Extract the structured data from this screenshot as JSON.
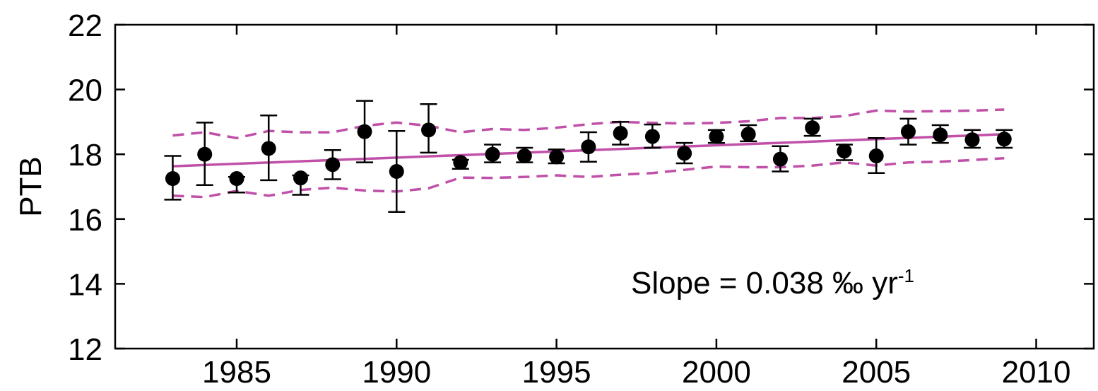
{
  "chart_data": {
    "type": "scatter",
    "title": "",
    "xlabel": "",
    "ylabel": "PTB",
    "xlim": [
      1981.2,
      2011.8
    ],
    "ylim": [
      12,
      22
    ],
    "xticks": [
      "1985",
      "1990",
      "1995",
      "2000",
      "2005",
      "2010"
    ],
    "yticks": [
      "12",
      "14",
      "16",
      "18",
      "20",
      "22"
    ],
    "grid": false,
    "annotation": {
      "text": "Slope = 0.038 ‰ yr",
      "superscript": "-1"
    },
    "series": [
      {
        "style": "points-with-error-bars",
        "color": "#000000",
        "x": [
          1983,
          1984,
          1985,
          1986,
          1987,
          1988,
          1989,
          1990,
          1991,
          1992,
          1993,
          1994,
          1995,
          1996,
          1997,
          1998,
          1999,
          2000,
          2001,
          2002,
          2003,
          2004,
          2005,
          2006,
          2007,
          2008,
          2009
        ],
        "y": [
          17.25,
          18.0,
          17.25,
          18.18,
          17.27,
          17.68,
          18.7,
          17.47,
          18.75,
          17.75,
          18.0,
          17.95,
          17.92,
          18.23,
          18.65,
          18.55,
          18.03,
          18.55,
          18.62,
          17.85,
          18.82,
          18.1,
          17.95,
          18.7,
          18.6,
          18.45,
          18.47
        ],
        "error_low": [
          16.6,
          17.05,
          16.82,
          17.2,
          16.75,
          17.23,
          17.75,
          16.22,
          18.05,
          17.55,
          17.75,
          17.75,
          17.72,
          17.77,
          18.3,
          18.2,
          17.72,
          18.35,
          18.4,
          17.47,
          18.57,
          17.82,
          17.42,
          18.3,
          18.35,
          18.2,
          18.2
        ],
        "error_high": [
          17.95,
          18.98,
          17.3,
          19.2,
          17.35,
          18.13,
          19.65,
          18.72,
          19.55,
          17.83,
          18.3,
          18.2,
          18.15,
          18.68,
          19.0,
          18.92,
          18.35,
          18.75,
          18.9,
          18.25,
          19.1,
          18.3,
          18.5,
          19.1,
          18.9,
          18.75,
          18.75
        ]
      },
      {
        "style": "line",
        "color": "#c050a8",
        "x": [
          1983,
          2009
        ],
        "y": [
          17.63,
          18.62
        ]
      },
      {
        "style": "dashed",
        "color": "#c050a8",
        "x": [
          1983,
          1984,
          1985,
          1986,
          1987,
          1988,
          1989,
          1990,
          1991,
          1992,
          1993,
          1994,
          1995,
          1996,
          1997,
          1998,
          1999,
          2000,
          2001,
          2002,
          2003,
          2004,
          2005,
          2006,
          2007,
          2008,
          2009
        ],
        "y": [
          18.58,
          18.68,
          18.5,
          18.72,
          18.68,
          18.68,
          18.88,
          18.98,
          18.88,
          18.68,
          18.78,
          18.75,
          18.82,
          18.93,
          19.0,
          18.97,
          18.95,
          18.97,
          19.02,
          19.12,
          19.12,
          19.18,
          19.35,
          19.32,
          19.33,
          19.35,
          19.38
        ]
      },
      {
        "style": "dashed",
        "color": "#c050a8",
        "x": [
          1983,
          1984,
          1985,
          1986,
          1987,
          1988,
          1989,
          1990,
          1991,
          1992,
          1993,
          1994,
          1995,
          1996,
          1997,
          1998,
          1999,
          2000,
          2001,
          2002,
          2003,
          2004,
          2005,
          2006,
          2007,
          2008,
          2009
        ],
        "y": [
          16.72,
          16.68,
          16.87,
          16.72,
          16.9,
          16.97,
          16.88,
          16.85,
          16.95,
          17.28,
          17.27,
          17.3,
          17.35,
          17.3,
          17.37,
          17.42,
          17.52,
          17.62,
          17.6,
          17.6,
          17.65,
          17.75,
          17.65,
          17.75,
          17.77,
          17.82,
          17.88
        ]
      }
    ]
  }
}
